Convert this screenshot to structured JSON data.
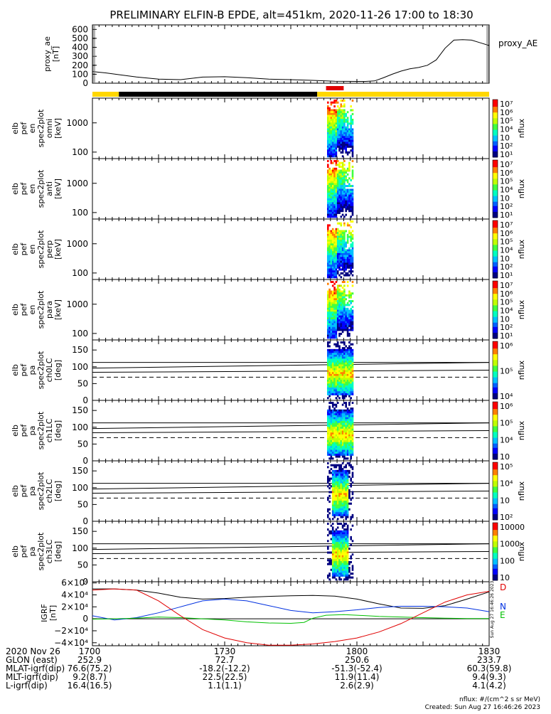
{
  "title": "PRELIMINARY ELFIN-B EPDE, alt=451km, 2020-11-26 17:00 to 18:30",
  "colors": {
    "red": "#e00000",
    "blue": "#0030e0",
    "green": "#00c000",
    "black": "#000000",
    "yellow": "#ffd700"
  },
  "status_bar": {
    "segments": [
      {
        "t0": 0,
        "t1": 6,
        "color": "yellow"
      },
      {
        "t0": 6,
        "t1": 51,
        "color": "black"
      },
      {
        "t0": 51,
        "t1": 90,
        "color": "yellow"
      }
    ],
    "science_zone": {
      "t0": 53,
      "t1": 57,
      "color": "red"
    }
  },
  "chart_data": [
    {
      "type": "line",
      "ylabel": [
        "proxy_ae",
        "[nT]"
      ],
      "ylim": [
        0,
        650
      ],
      "yticks": [
        "600",
        "500",
        "400",
        "300",
        "200",
        "100",
        "0"
      ],
      "ytick_values": [
        600,
        500,
        400,
        300,
        200,
        100,
        0
      ],
      "legend": "proxy_AE",
      "series": [
        {
          "name": "proxy_AE",
          "x": [
            0,
            3,
            6,
            10,
            15,
            20,
            25,
            30,
            35,
            40,
            45,
            50,
            55,
            60,
            62,
            64,
            66,
            68,
            70,
            72,
            74,
            76,
            78,
            80,
            82,
            84,
            86,
            88,
            90
          ],
          "y": [
            130,
            115,
            95,
            70,
            45,
            40,
            68,
            72,
            62,
            45,
            40,
            32,
            22,
            20,
            20,
            25,
            60,
            100,
            135,
            160,
            175,
            200,
            260,
            390,
            480,
            485,
            480,
            450,
            420
          ]
        }
      ]
    },
    {
      "type": "heatmap",
      "ylabel": [
        "elb",
        "pef",
        "en",
        "spec2plot",
        "omni",
        "[keV]"
      ],
      "yscale": "log",
      "yticks": [
        "1000",
        "100"
      ],
      "ytick_values": [
        1000,
        100
      ],
      "zlabel": "nflux",
      "zticks": [
        "10⁷",
        "10⁶",
        "10⁵",
        "10⁴",
        "10⁳",
        "10²",
        "10¹"
      ]
    },
    {
      "type": "heatmap",
      "ylabel": [
        "elb",
        "pef",
        "en",
        "spec2plot",
        "anti",
        "[keV]"
      ],
      "yscale": "log",
      "yticks": [
        "1000",
        "100"
      ],
      "ytick_values": [
        1000,
        100
      ],
      "zlabel": "nflux",
      "zticks": [
        "10⁷",
        "10⁶",
        "10⁵",
        "10⁴",
        "10⁳",
        "10²",
        "10¹"
      ]
    },
    {
      "type": "heatmap",
      "ylabel": [
        "elb",
        "pef",
        "en",
        "spec2plot",
        "perp",
        "[keV]"
      ],
      "yscale": "log",
      "yticks": [
        "1000",
        "100"
      ],
      "ytick_values": [
        1000,
        100
      ],
      "zlabel": "nflux",
      "zticks": [
        "10⁷",
        "10⁶",
        "10⁵",
        "10⁴",
        "10⁳",
        "10²",
        "10¹"
      ]
    },
    {
      "type": "heatmap",
      "ylabel": [
        "elb",
        "pef",
        "en",
        "spec2plot",
        "para",
        "[keV]"
      ],
      "yscale": "log",
      "yticks": [
        "1000",
        "100"
      ],
      "ytick_values": [
        1000,
        100
      ],
      "zlabel": "nflux",
      "zticks": [
        "10⁷",
        "10⁶",
        "10⁵",
        "10⁴",
        "10⁳",
        "10²",
        "10¹"
      ]
    },
    {
      "type": "heatmap",
      "ylabel": [
        "elb",
        "pef",
        "pa",
        "spec2plot",
        "ch0LC",
        "[deg]"
      ],
      "yticks": [
        "150",
        "100",
        "50",
        "0"
      ],
      "ytick_values": [
        150,
        100,
        50,
        0
      ],
      "zlabel": "nflux",
      "zticks": [
        "10⁶",
        "10⁵",
        "10⁴"
      ]
    },
    {
      "type": "heatmap",
      "ylabel": [
        "elb",
        "pef",
        "pa",
        "spec2plot",
        "ch1LC",
        "[deg]"
      ],
      "yticks": [
        "150",
        "100",
        "50",
        "0"
      ],
      "ytick_values": [
        150,
        100,
        50,
        0
      ],
      "zlabel": "nflux",
      "zticks": [
        "10⁶",
        "10⁵",
        "10⁴",
        "10⁳"
      ]
    },
    {
      "type": "heatmap",
      "ylabel": [
        "elb",
        "pef",
        "pa",
        "spec2plot",
        "ch2LC",
        "[deg]"
      ],
      "yticks": [
        "150",
        "100",
        "50",
        "0"
      ],
      "ytick_values": [
        150,
        100,
        50,
        0
      ],
      "zlabel": "nflux",
      "zticks": [
        "10⁵",
        "10⁴",
        "10⁳",
        "10²"
      ]
    },
    {
      "type": "heatmap",
      "ylabel": [
        "elb",
        "pef",
        "pa",
        "spec2plot",
        "ch3LC",
        "[deg]"
      ],
      "yticks": [
        "150",
        "100",
        "50",
        "0"
      ],
      "ytick_values": [
        150,
        100,
        50,
        0
      ],
      "zlabel": "nflux",
      "zticks": [
        "10000",
        "1000",
        "100",
        "10"
      ]
    },
    {
      "type": "line",
      "ylabel": [
        "IGRF",
        "[nT]"
      ],
      "ylim": [
        -45000,
        62000
      ],
      "yticks": [
        "6×10⁴",
        "4×10⁴",
        "2×10⁴",
        "0",
        "−2×10⁴",
        "−4×10⁴"
      ],
      "ytick_values": [
        60000,
        40000,
        20000,
        0,
        -20000,
        -40000
      ],
      "series": [
        {
          "name": "D",
          "color": "black",
          "x": [
            0,
            5,
            10,
            15,
            20,
            25,
            30,
            35,
            40,
            45,
            50,
            55,
            60,
            65,
            70,
            75,
            80,
            85,
            90
          ],
          "y": [
            50000,
            50000,
            48000,
            43000,
            36000,
            33000,
            34000,
            36000,
            37500,
            38500,
            39000,
            38000,
            33000,
            25000,
            18000,
            17500,
            22000,
            33000,
            45000
          ]
        },
        {
          "name": "N",
          "color": "blue",
          "x": [
            0,
            5,
            10,
            15,
            20,
            25,
            30,
            35,
            40,
            45,
            50,
            55,
            60,
            65,
            70,
            75,
            80,
            85,
            90
          ],
          "y": [
            5000,
            -2000,
            2000,
            10000,
            20000,
            30000,
            33000,
            30000,
            22000,
            14000,
            10000,
            12000,
            15000,
            19000,
            21000,
            21000,
            20000,
            18000,
            12000
          ]
        },
        {
          "name": "E",
          "color": "green",
          "x": [
            0,
            5,
            10,
            15,
            20,
            25,
            30,
            35,
            40,
            45,
            48,
            50,
            53,
            57,
            60,
            65,
            70,
            75,
            80,
            85,
            90
          ],
          "y": [
            -500,
            0,
            1000,
            3000,
            2000,
            0,
            -2000,
            -5000,
            -7000,
            -7500,
            -6000,
            1000,
            6000,
            7000,
            6000,
            4000,
            3000,
            2000,
            1000,
            500,
            500
          ]
        },
        {
          "name": "",
          "color": "red",
          "x": [
            0,
            5,
            10,
            15,
            20,
            25,
            30,
            35,
            40,
            45,
            50,
            55,
            60,
            65,
            70,
            75,
            80,
            85,
            90
          ],
          "y": [
            48000,
            50000,
            48000,
            30000,
            5000,
            -18000,
            -32000,
            -40000,
            -44000,
            -44000,
            -42000,
            -38000,
            -32000,
            -22000,
            -8000,
            10000,
            28000,
            40000,
            46000
          ]
        }
      ]
    }
  ],
  "xaxis": {
    "rows": [
      {
        "label": "2020 Nov 26",
        "values": [
          "1700",
          "1730",
          "1800",
          "1830"
        ]
      },
      {
        "label": "GLON (east)",
        "values": [
          "252.9",
          "72.7",
          "250.6",
          "233.7"
        ]
      },
      {
        "label": "MLAT-igrf(dip)",
        "values": [
          "76.6(75.2)",
          "-18.2(-12.2)",
          "-51.3(-52.4)",
          "60.3(59.8)"
        ]
      },
      {
        "label": "MLT-igrf(dip)",
        "values": [
          "9.2(8.7)",
          "22.5(22.5)",
          "11.9(11.4)",
          "9.4(9.3)"
        ]
      },
      {
        "label": "L-igrf(dip)",
        "values": [
          "16.4(16.5)",
          "1.1(1.1)",
          "2.6(2.9)",
          "4.1(4.2)"
        ]
      }
    ],
    "tick_minutes": [
      0,
      30,
      60,
      90
    ]
  },
  "footer": {
    "units": "nflux: #/(cm^2 s sr MeV)",
    "created": "Created: Sun Aug 27 16:46:26 2023",
    "side_stamp": "Sun Aug 27 16:46:26 2023"
  }
}
